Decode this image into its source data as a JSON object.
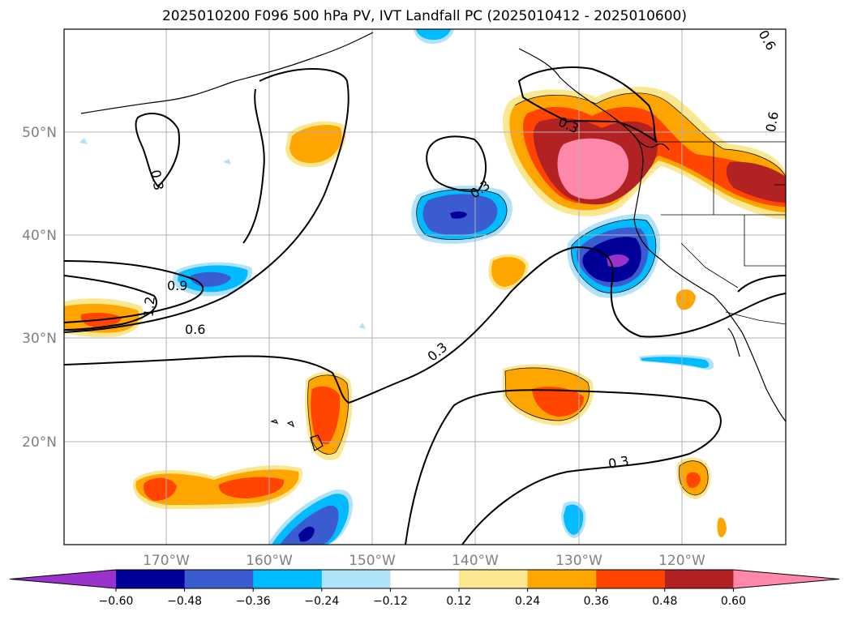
{
  "title": "2025010200 F096 500 hPa PV, IVT Landfall PC (2025010412 - 2025010600)",
  "lon_labels": [
    "170°W",
    "160°W",
    "150°W",
    "140°W",
    "130°W",
    "120°W"
  ],
  "lat_labels": [
    "50°N",
    "40°N",
    "30°N",
    "20°N"
  ],
  "contour_labels": [
    "0.3",
    "0.3",
    "0.3",
    "0.3",
    "0.6",
    "0.9",
    "1.2",
    "0.3",
    "0.6",
    "0.6"
  ],
  "colorbar": {
    "ticks": [
      "−0.60",
      "−0.48",
      "−0.36",
      "−0.24",
      "−0.12",
      "0.12",
      "0.24",
      "0.36",
      "0.48",
      "0.60"
    ],
    "colors": [
      "#9933cc",
      "#000099",
      "#3b5bd0",
      "#00bbff",
      "#b0e2fa",
      "#ffffff",
      "#fbe78f",
      "#ffa500",
      "#ff4500",
      "#b22222",
      "#ff88aa"
    ]
  }
}
